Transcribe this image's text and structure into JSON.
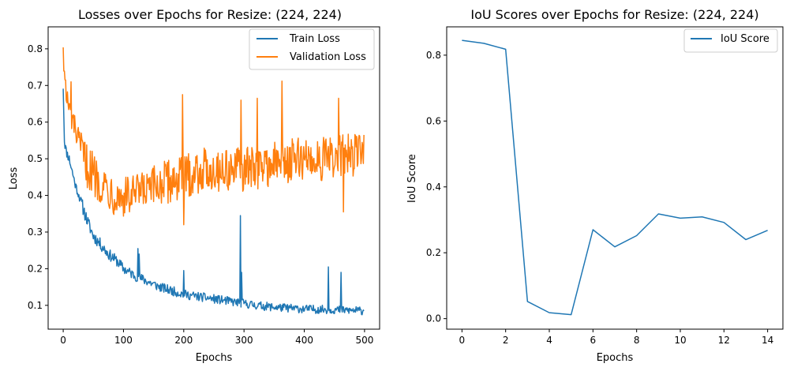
{
  "chart_data": [
    {
      "type": "line",
      "title": "Losses over Epochs for Resize: (224, 224)",
      "xlabel": "Epochs",
      "ylabel": "Loss",
      "xlim": [
        -25,
        525
      ],
      "ylim": [
        0.035,
        0.86
      ],
      "xticks": [
        0,
        100,
        200,
        300,
        400,
        500
      ],
      "yticks": [
        0.1,
        0.2,
        0.3,
        0.4,
        0.5,
        0.6,
        0.7,
        0.8
      ],
      "legend": "top-right",
      "x": "epochs 0-499 (one point per epoch)",
      "series": [
        {
          "name": "Train Loss",
          "color": "#1f77b4",
          "anchors": [
            [
              0,
              0.7
            ],
            [
              2,
              0.55
            ],
            [
              5,
              0.52
            ],
            [
              10,
              0.5
            ],
            [
              20,
              0.43
            ],
            [
              30,
              0.38
            ],
            [
              40,
              0.33
            ],
            [
              50,
              0.29
            ],
            [
              60,
              0.27
            ],
            [
              75,
              0.24
            ],
            [
              90,
              0.22
            ],
            [
              100,
              0.2
            ],
            [
              120,
              0.18
            ],
            [
              140,
              0.165
            ],
            [
              160,
              0.15
            ],
            [
              180,
              0.14
            ],
            [
              200,
              0.13
            ],
            [
              220,
              0.125
            ],
            [
              240,
              0.12
            ],
            [
              260,
              0.115
            ],
            [
              280,
              0.11
            ],
            [
              300,
              0.105
            ],
            [
              320,
              0.1
            ],
            [
              350,
              0.095
            ],
            [
              400,
              0.09
            ],
            [
              450,
              0.088
            ],
            [
              499,
              0.085
            ]
          ],
          "spikes": [
            [
              124,
              0.255
            ],
            [
              126,
              0.24
            ],
            [
              200,
              0.195
            ],
            [
              294,
              0.345
            ],
            [
              296,
              0.19
            ],
            [
              440,
              0.205
            ],
            [
              461,
              0.19
            ]
          ],
          "noise": 0.045,
          "min": 0.065
        },
        {
          "name": "Validation Loss",
          "color": "#ff7f0e",
          "anchors": [
            [
              0,
              0.82
            ],
            [
              2,
              0.72
            ],
            [
              5,
              0.67
            ],
            [
              10,
              0.63
            ],
            [
              20,
              0.58
            ],
            [
              30,
              0.52
            ],
            [
              40,
              0.48
            ],
            [
              50,
              0.46
            ],
            [
              60,
              0.44
            ],
            [
              75,
              0.42
            ],
            [
              90,
              0.4
            ],
            [
              100,
              0.395
            ],
            [
              120,
              0.4
            ],
            [
              140,
              0.41
            ],
            [
              160,
              0.43
            ],
            [
              180,
              0.44
            ],
            [
              200,
              0.45
            ],
            [
              230,
              0.47
            ],
            [
              260,
              0.47
            ],
            [
              300,
              0.47
            ],
            [
              330,
              0.48
            ],
            [
              360,
              0.49
            ],
            [
              400,
              0.5
            ],
            [
              450,
              0.5
            ],
            [
              499,
              0.52
            ]
          ],
          "spikes": [
            [
              4,
              0.715
            ],
            [
              13,
              0.71
            ],
            [
              198,
              0.675
            ],
            [
              200,
              0.32
            ],
            [
              295,
              0.66
            ],
            [
              322,
              0.665
            ],
            [
              363,
              0.712
            ],
            [
              457,
              0.665
            ],
            [
              465,
              0.355
            ],
            [
              499,
              0.565
            ]
          ],
          "noise": 0.12,
          "min": 0.33
        }
      ]
    },
    {
      "type": "line",
      "title": "IoU Scores over Epochs for Resize: (224, 224)",
      "xlabel": "Epochs",
      "ylabel": "IoU Score",
      "xlim": [
        -0.7,
        14.7
      ],
      "ylim": [
        -0.032,
        0.886
      ],
      "xticks": [
        0,
        2,
        4,
        6,
        8,
        10,
        12,
        14
      ],
      "yticks": [
        0.0,
        0.2,
        0.4,
        0.6,
        0.8
      ],
      "legend": "top-right",
      "series": [
        {
          "name": "IoU Score",
          "color": "#1f77b4",
          "x": [
            0,
            1,
            2,
            3,
            4,
            5,
            6,
            7,
            8,
            9,
            10,
            11,
            12,
            13,
            14
          ],
          "values": [
            0.845,
            0.836,
            0.818,
            0.052,
            0.018,
            0.012,
            0.27,
            0.218,
            0.252,
            0.318,
            0.305,
            0.309,
            0.292,
            0.24,
            0.268
          ]
        }
      ]
    }
  ]
}
